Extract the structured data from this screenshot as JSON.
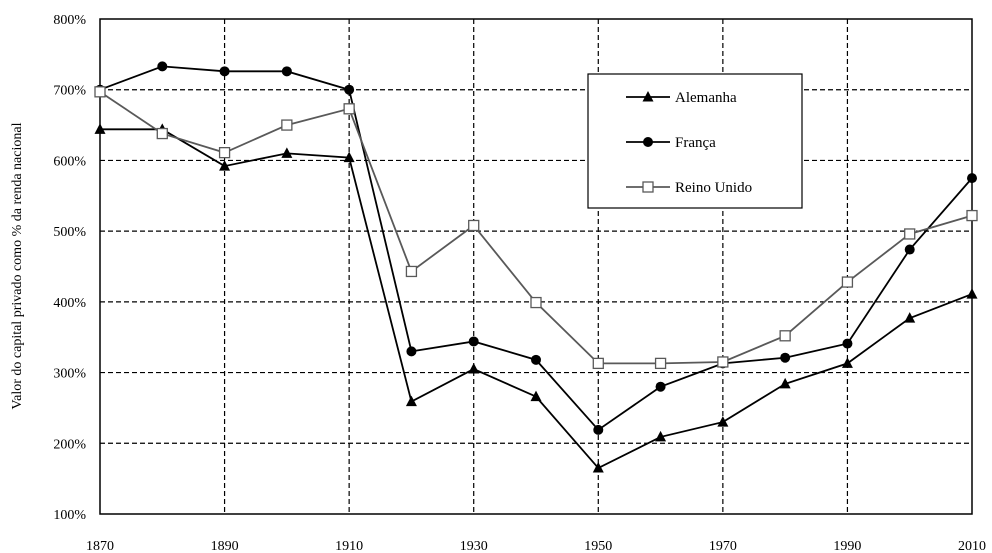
{
  "chart_data": {
    "type": "line",
    "title": "",
    "xlabel": "",
    "ylabel": "Valor do capital privado como % da renda nacional",
    "xlim": [
      1870,
      2010
    ],
    "ylim": [
      100,
      800
    ],
    "x_ticks": [
      1870,
      1890,
      1910,
      1930,
      1950,
      1970,
      1990,
      2010
    ],
    "x_tick_labels": [
      "1870",
      "1890",
      "1910",
      "1930",
      "1950",
      "1970",
      "1990",
      "2010"
    ],
    "y_ticks": [
      100,
      200,
      300,
      400,
      500,
      600,
      700,
      800
    ],
    "y_tick_labels": [
      "100%",
      "200%",
      "300%",
      "400%",
      "500%",
      "600%",
      "700%",
      "800%"
    ],
    "grid": true,
    "legend_position": "top-right",
    "series": [
      {
        "name": "Alemanha",
        "marker": "triangle",
        "color": "#000000",
        "points": [
          [
            1870,
            644
          ],
          [
            1880,
            644
          ],
          [
            1890,
            592
          ],
          [
            1900,
            610
          ],
          [
            1910,
            604
          ],
          [
            1920,
            259
          ],
          [
            1930,
            305
          ],
          [
            1940,
            266
          ],
          [
            1950,
            165
          ],
          [
            1960,
            209
          ],
          [
            1970,
            230
          ],
          [
            1980,
            284
          ],
          [
            1990,
            313
          ],
          [
            2000,
            377
          ],
          [
            2010,
            411
          ]
        ]
      },
      {
        "name": "França",
        "marker": "circle",
        "color": "#000000",
        "points": [
          [
            1870,
            700
          ],
          [
            1880,
            733
          ],
          [
            1890,
            726
          ],
          [
            1900,
            726
          ],
          [
            1910,
            700
          ],
          [
            1920,
            330
          ],
          [
            1930,
            344
          ],
          [
            1940,
            318
          ],
          [
            1950,
            219
          ],
          [
            1960,
            280
          ],
          [
            1970,
            313
          ],
          [
            1980,
            321
          ],
          [
            1990,
            341
          ],
          [
            2000,
            474
          ],
          [
            2010,
            575
          ]
        ]
      },
      {
        "name": "Reino Unido",
        "marker": "square",
        "color": "#595959",
        "points": [
          [
            1870,
            697
          ],
          [
            1880,
            638
          ],
          [
            1890,
            611
          ],
          [
            1900,
            650
          ],
          [
            1910,
            673
          ],
          [
            1920,
            443
          ],
          [
            1930,
            508
          ],
          [
            1940,
            399
          ],
          [
            1950,
            313
          ],
          [
            1960,
            313
          ],
          [
            1970,
            315
          ],
          [
            1980,
            352
          ],
          [
            1990,
            428
          ],
          [
            2000,
            496
          ],
          [
            2010,
            522
          ]
        ]
      }
    ]
  }
}
